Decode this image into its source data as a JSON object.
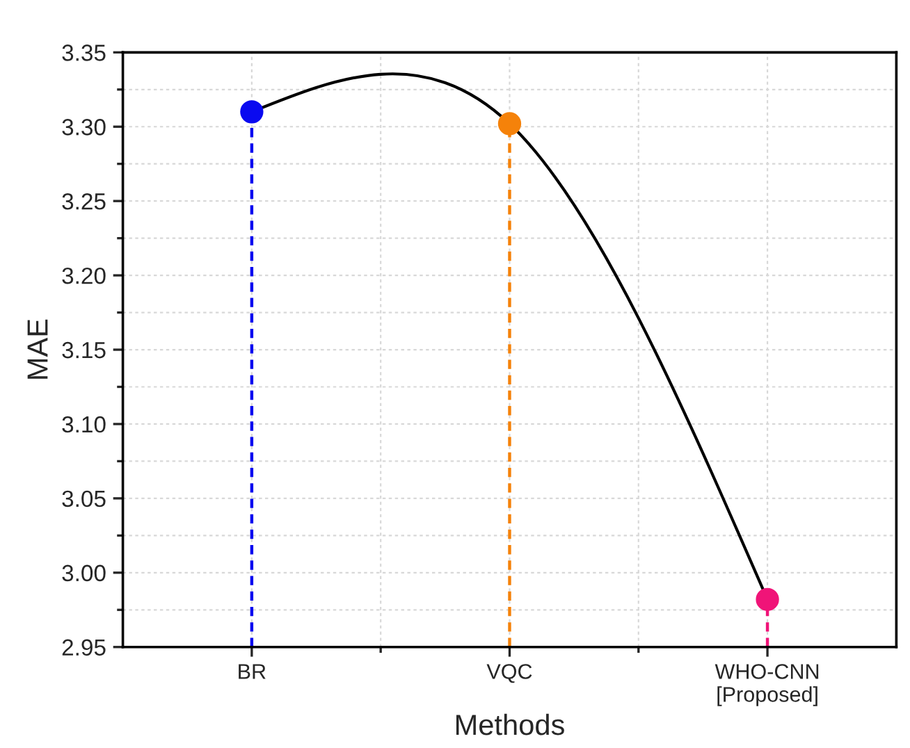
{
  "chart_data": {
    "type": "lollipop",
    "xlabel": "Methods",
    "ylabel": "MAE",
    "categories": [
      "BR",
      "VQC",
      "WHO-CNN\n[Proposed]"
    ],
    "series": [
      {
        "colors": [
          "#0a0af0",
          "#f5820a",
          "#f01478"
        ],
        "values": [
          3.31,
          3.302,
          2.982
        ],
        "line_style": "dashed",
        "marker": "circle"
      },
      {
        "type": "line",
        "color": "#000000",
        "values": [
          3.31,
          3.302,
          2.982
        ],
        "line_style": "solid",
        "marker": "none"
      }
    ],
    "ylim": [
      2.95,
      3.35
    ],
    "yticks": [
      {
        "value": 2.95,
        "label": "2.95"
      },
      {
        "value": 3.0,
        "label": "3.00"
      },
      {
        "value": 3.05,
        "label": "3.05"
      },
      {
        "value": 3.1,
        "label": "3.10"
      },
      {
        "value": 3.15,
        "label": "3.15"
      },
      {
        "value": 3.2,
        "label": "3.20"
      },
      {
        "value": 3.25,
        "label": "3.25"
      },
      {
        "value": 3.3,
        "label": "3.30"
      },
      {
        "value": 3.35,
        "label": "3.35"
      }
    ],
    "grid": true
  }
}
